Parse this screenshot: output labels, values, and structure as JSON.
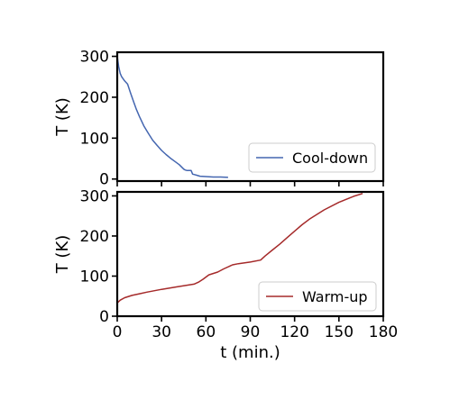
{
  "chart_data": [
    {
      "type": "line",
      "title": "",
      "xlabel": "",
      "ylabel": "T (K)",
      "xlim": [
        0,
        180
      ],
      "ylim": [
        -5,
        310
      ],
      "xticks": [
        0,
        30,
        60,
        90,
        120,
        150,
        180
      ],
      "xtick_labels_visible": false,
      "yticks": [
        0,
        100,
        200,
        300
      ],
      "ytick_labels": [
        "0",
        "100",
        "200",
        "300"
      ],
      "grid": false,
      "legend_position": "lower-right",
      "series": [
        {
          "name": "Cool-down",
          "color": "#4466b0",
          "x": [
            0,
            1,
            2,
            3,
            5,
            7,
            9,
            11,
            13,
            15,
            18,
            21,
            24,
            27,
            30,
            33,
            36,
            39,
            42,
            45,
            46,
            47,
            50,
            51,
            52,
            54,
            56,
            60,
            65,
            70,
            75
          ],
          "y": [
            300,
            275,
            258,
            250,
            240,
            232,
            210,
            190,
            170,
            153,
            130,
            112,
            95,
            82,
            70,
            60,
            51,
            43,
            35,
            24,
            22,
            21,
            21,
            12,
            11,
            9,
            7,
            6,
            5,
            5,
            4
          ]
        }
      ]
    },
    {
      "type": "line",
      "title": "",
      "xlabel": "t (min.)",
      "ylabel": "T (K)",
      "xlim": [
        0,
        180
      ],
      "ylim": [
        0,
        310
      ],
      "xticks": [
        0,
        30,
        60,
        90,
        120,
        150,
        180
      ],
      "xtick_labels": [
        "0",
        "30",
        "60",
        "90",
        "120",
        "150",
        "180"
      ],
      "yticks": [
        0,
        100,
        200,
        300
      ],
      "ytick_labels": [
        "0",
        "100",
        "200",
        "300"
      ],
      "grid": false,
      "legend_position": "lower-right",
      "series": [
        {
          "name": "Warm-up",
          "color": "#a52a2a",
          "x": [
            0,
            2,
            5,
            10,
            15,
            20,
            30,
            40,
            52,
            55,
            58,
            62,
            68,
            72,
            78,
            82,
            90,
            97,
            100,
            105,
            110,
            115,
            120,
            125,
            130,
            140,
            150,
            160,
            166
          ],
          "y": [
            33,
            40,
            46,
            52,
            56,
            60,
            67,
            73,
            80,
            85,
            92,
            103,
            110,
            118,
            128,
            131,
            135,
            140,
            150,
            165,
            180,
            196,
            212,
            228,
            242,
            265,
            284,
            299,
            306
          ]
        }
      ]
    }
  ]
}
